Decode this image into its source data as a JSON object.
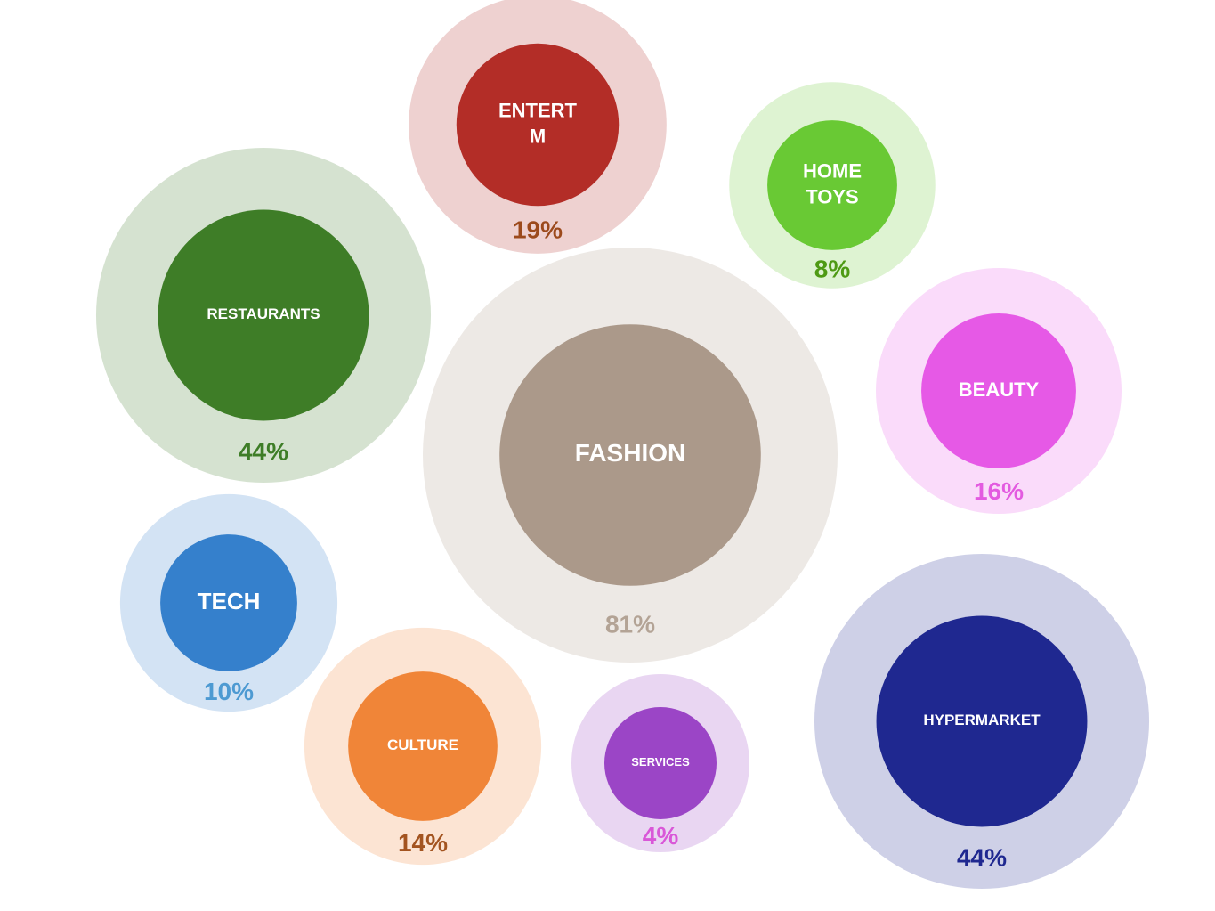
{
  "chart_data": {
    "type": "bubble",
    "categories": [
      "ENTERT M",
      "HOME TOYS",
      "RESTAURANTS",
      "FASHION",
      "BEAUTY",
      "TECH",
      "CULTURE",
      "SERVICES",
      "HYPERMARKET"
    ],
    "values": [
      19,
      8,
      44,
      81,
      16,
      10,
      14,
      4,
      44
    ],
    "value_labels": [
      "19%",
      "8%",
      "44%",
      "81%",
      "16%",
      "10%",
      "14%",
      "4%",
      "44%"
    ],
    "colors": [
      "#b32d27",
      "#69c934",
      "#3e7d27",
      "#ab998a",
      "#e659e6",
      "#3580cc",
      "#f08538",
      "#9b45c6",
      "#1f2890"
    ],
    "label_colors": [
      "#9c4a1c",
      "#4e9a14",
      "#3e7d27",
      "#b3a395",
      "#e35ae0",
      "#4d9ad2",
      "#a35420",
      "#d957d8",
      "#1f2890"
    ]
  }
}
